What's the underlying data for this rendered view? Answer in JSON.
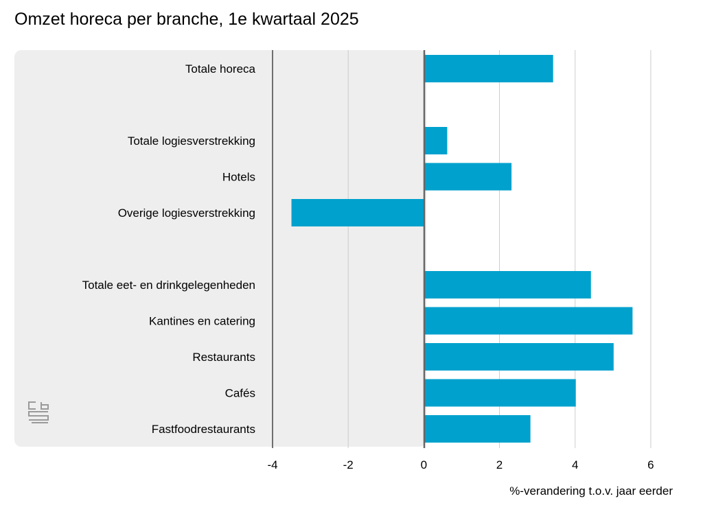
{
  "chart_data": {
    "type": "bar",
    "orientation": "horizontal",
    "title": "Omzet horeca per branche, 1e kwartaal 2025",
    "xlabel": "%-verandering t.o.v. jaar eerder",
    "ylabel": "",
    "xlim": [
      -4,
      7
    ],
    "xticks": [
      "-4",
      "-2",
      "0",
      "2",
      "4",
      "6"
    ],
    "grid": true,
    "categories": [
      "Totale horeca",
      "",
      "Totale logiesverstrekking",
      "Hotels",
      "Overige logiesverstrekking",
      "",
      "Totale eet- en drinkgelegenheden",
      "Kantines en catering",
      "Restaurants",
      "Cafés",
      "Fastfoodrestaurants"
    ],
    "values": [
      3.4,
      null,
      0.6,
      2.3,
      -3.5,
      null,
      4.4,
      5.5,
      5.0,
      4.0,
      2.8
    ],
    "bar_color": "#00a1cd",
    "label_panel_color": "#eeeeee",
    "logo": "cbs-logo-icon"
  }
}
